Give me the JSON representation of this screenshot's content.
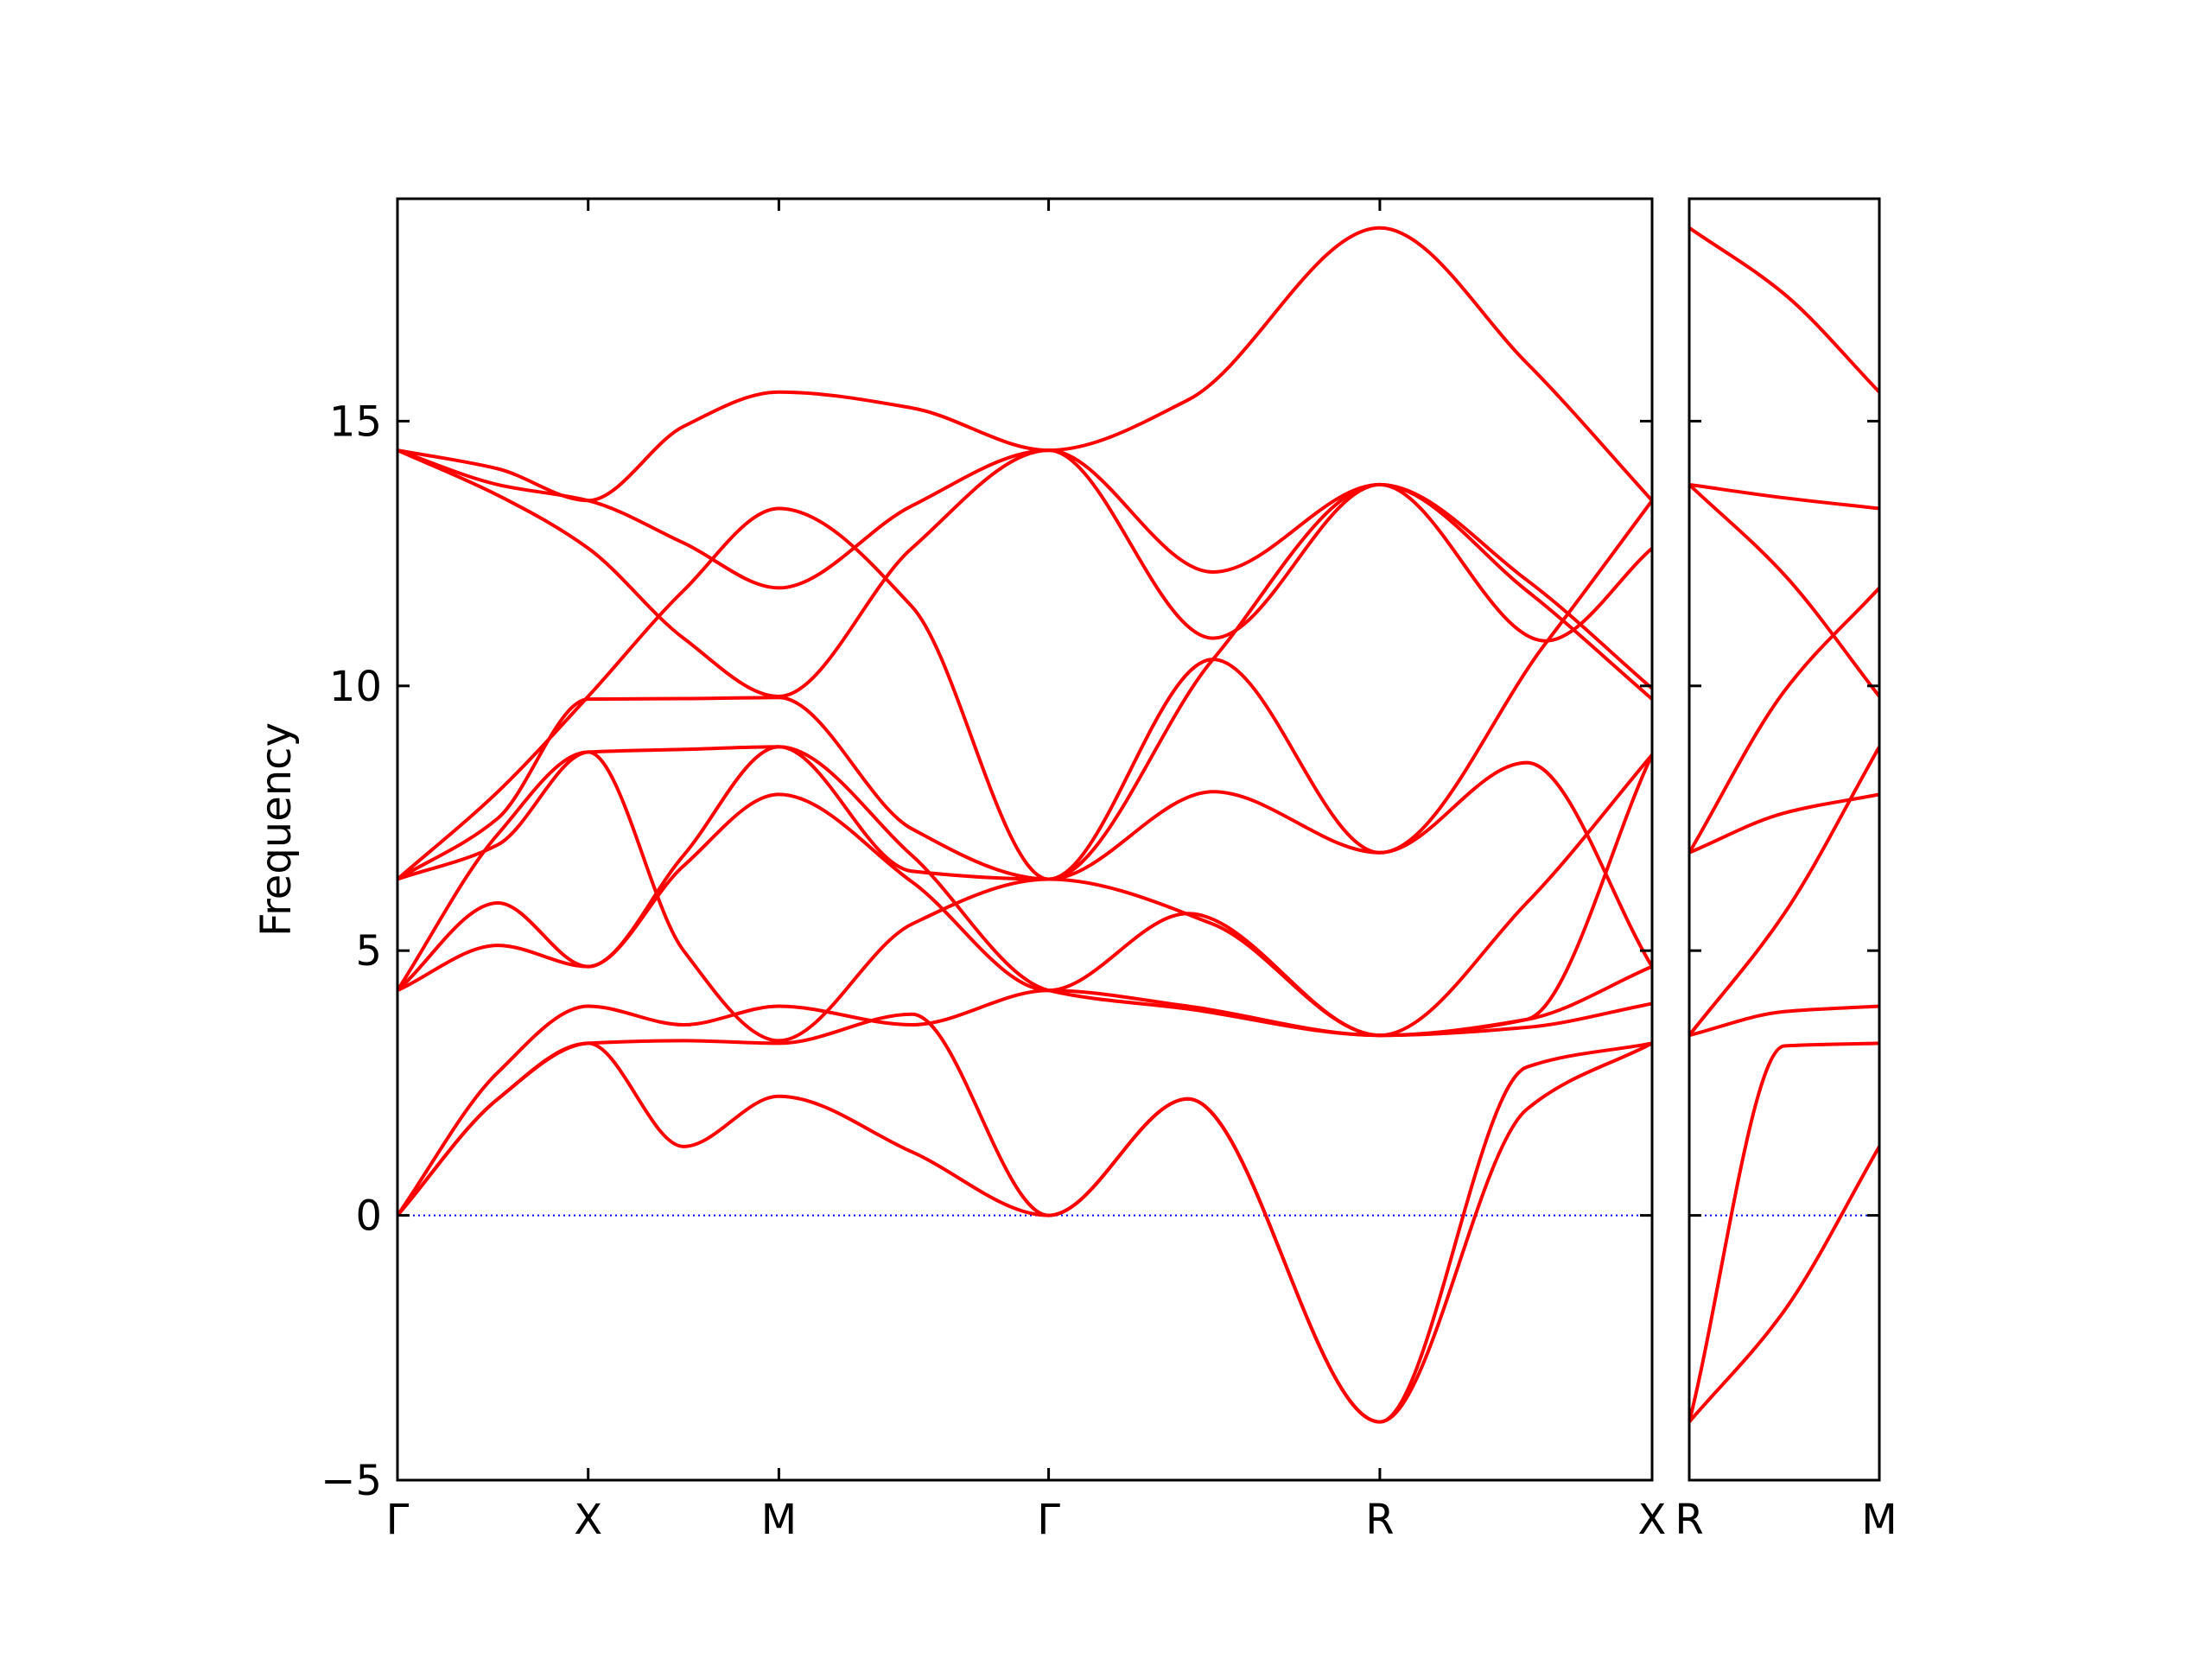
{
  "chart_data": {
    "type": "line",
    "title": "",
    "ylabel": "Frequency",
    "ylim": [
      -5,
      19.2
    ],
    "yticks": [
      -5,
      0,
      5,
      10,
      15
    ],
    "ytick_labels": [
      "−5",
      "0",
      "5",
      "10",
      "15"
    ],
    "line_color": "#ff0000",
    "zero_line_color": "#0000ff",
    "panels": [
      {
        "id": "main",
        "xlim": [
          0,
          1
        ],
        "xticks": [
          {
            "pos": 0.0,
            "label": "Γ"
          },
          {
            "pos": 0.152,
            "label": "X"
          },
          {
            "pos": 0.304,
            "label": "M"
          },
          {
            "pos": 0.519,
            "label": "Γ"
          },
          {
            "pos": 0.783,
            "label": "R"
          },
          {
            "pos": 1.0,
            "label": "X"
          }
        ],
        "bands": [
          {
            "x": [
              0,
              0.08,
              0.152,
              0.228,
              0.304,
              0.41,
              0.519,
              0.63,
              0.783,
              0.9,
              1.0
            ],
            "y": [
              14.45,
              14.1,
              13.5,
              14.9,
              15.55,
              15.25,
              14.45,
              15.4,
              18.65,
              16.1,
              13.5
            ]
          },
          {
            "x": [
              0,
              0.08,
              0.152,
              0.228,
              0.304,
              0.41,
              0.519,
              0.65,
              0.783,
              0.915,
              1.0
            ],
            "y": [
              14.45,
              13.8,
              13.5,
              12.7,
              11.85,
              13.4,
              14.45,
              12.15,
              13.8,
              10.85,
              12.6
            ]
          },
          {
            "x": [
              0,
              0.08,
              0.152,
              0.228,
              0.304,
              0.41,
              0.519,
              0.65,
              0.783,
              0.9,
              1.0
            ],
            "y": [
              14.45,
              13.6,
              12.6,
              10.9,
              9.8,
              12.6,
              14.45,
              10.9,
              13.8,
              11.8,
              9.75
            ]
          },
          {
            "x": [
              0,
              0.08,
              0.152,
              0.228,
              0.304,
              0.41,
              0.519,
              0.65,
              0.783,
              0.9,
              1.0
            ],
            "y": [
              6.35,
              8.0,
              9.8,
              11.8,
              13.35,
              11.5,
              6.35,
              10.5,
              13.8,
              12.0,
              9.95
            ]
          },
          {
            "x": [
              0,
              0.08,
              0.152,
              0.228,
              0.304,
              0.41,
              0.519,
              0.65,
              0.783,
              0.915,
              1.0
            ],
            "y": [
              6.35,
              7.5,
              9.75,
              9.76,
              9.78,
              7.3,
              6.35,
              10.5,
              6.85,
              10.8,
              13.5
            ]
          },
          {
            "x": [
              0,
              0.08,
              0.152,
              0.228,
              0.304,
              0.41,
              0.519,
              0.65,
              0.783,
              0.9,
              1.0
            ],
            "y": [
              6.35,
              7.0,
              8.75,
              8.8,
              8.85,
              6.5,
              6.35,
              8.0,
              6.85,
              8.55,
              4.7
            ]
          },
          {
            "x": [
              0,
              0.08,
              0.152,
              0.228,
              0.304,
              0.41,
              0.519,
              0.65,
              0.783,
              0.9,
              1.0
            ],
            "y": [
              4.25,
              7.2,
              8.75,
              5.0,
              3.3,
              5.5,
              6.35,
              5.5,
              3.4,
              5.9,
              8.7
            ]
          },
          {
            "x": [
              0,
              0.08,
              0.152,
              0.228,
              0.304,
              0.41,
              0.519,
              0.63,
              0.783,
              0.9,
              1.0
            ],
            "y": [
              4.25,
              5.1,
              4.7,
              6.6,
              7.95,
              6.3,
              4.25,
              5.7,
              3.4,
              3.7,
              4.7
            ]
          },
          {
            "x": [
              0,
              0.08,
              0.152,
              0.228,
              0.304,
              0.41,
              0.519,
              0.63,
              0.783,
              0.9,
              1.0
            ],
            "y": [
              4.25,
              5.9,
              4.7,
              6.8,
              8.85,
              6.8,
              4.25,
              3.9,
              3.4,
              3.7,
              8.7
            ]
          },
          {
            "x": [
              0,
              0.08,
              0.152,
              0.228,
              0.304,
              0.41,
              0.519,
              0.63,
              0.783,
              0.9,
              1.0
            ],
            "y": [
              0,
              2.7,
              3.95,
              3.6,
              3.95,
              3.6,
              4.25,
              3.95,
              3.4,
              3.55,
              4.0
            ]
          },
          {
            "x": [
              0,
              0.08,
              0.152,
              0.228,
              0.304,
              0.41,
              0.519,
              0.63,
              0.783,
              0.9,
              1.0
            ],
            "y": [
              0,
              2.2,
              3.25,
              3.3,
              3.25,
              3.8,
              0,
              2.2,
              -3.9,
              2.0,
              3.25
            ]
          },
          {
            "x": [
              0,
              0.08,
              0.152,
              0.228,
              0.304,
              0.41,
              0.519,
              0.63,
              0.783,
              0.9,
              1.0
            ],
            "y": [
              0,
              2.2,
              3.25,
              1.3,
              2.25,
              1.2,
              0,
              2.2,
              -3.9,
              2.8,
              3.25
            ]
          }
        ]
      },
      {
        "id": "right",
        "xlim": [
          0,
          1
        ],
        "xticks": [
          {
            "pos": 0.0,
            "label": "R"
          },
          {
            "pos": 1.0,
            "label": "M"
          }
        ],
        "bands": [
          {
            "x": [
              0,
              0.5,
              1.0
            ],
            "y": [
              18.65,
              17.4,
              15.55
            ]
          },
          {
            "x": [
              0,
              0.5,
              1.0
            ],
            "y": [
              13.8,
              13.55,
              13.35
            ]
          },
          {
            "x": [
              0,
              0.5,
              1.0
            ],
            "y": [
              13.8,
              12.1,
              9.8
            ]
          },
          {
            "x": [
              0,
              0.5,
              1.0
            ],
            "y": [
              6.85,
              9.9,
              11.85
            ]
          },
          {
            "x": [
              0,
              0.5,
              1.0
            ],
            "y": [
              6.85,
              7.6,
              7.95
            ]
          },
          {
            "x": [
              0,
              0.5,
              1.0
            ],
            "y": [
              3.4,
              5.7,
              8.85
            ]
          },
          {
            "x": [
              0,
              0.5,
              1.0
            ],
            "y": [
              3.4,
              3.85,
              3.95
            ]
          },
          {
            "x": [
              0,
              0.5,
              1.0
            ],
            "y": [
              -3.9,
              3.2,
              3.25
            ]
          },
          {
            "x": [
              0,
              0.5,
              1.0
            ],
            "y": [
              -3.9,
              -1.8,
              1.3
            ]
          }
        ]
      }
    ]
  }
}
